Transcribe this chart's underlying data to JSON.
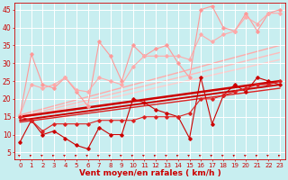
{
  "bg_color": "#c8eef0",
  "grid_color": "#ffffff",
  "xlabel": "Vent moyen/en rafales ( km/h )",
  "xlabel_color": "#cc0000",
  "xlabel_fontsize": 6.5,
  "tick_color": "#cc0000",
  "tick_fontsize": 5.0,
  "x_ticks": [
    0,
    1,
    2,
    3,
    4,
    5,
    6,
    7,
    8,
    9,
    10,
    11,
    12,
    13,
    14,
    15,
    16,
    17,
    18,
    19,
    20,
    21,
    22,
    23
  ],
  "ylim": [
    3,
    47
  ],
  "xlim": [
    -0.5,
    23.5
  ],
  "yticks": [
    5,
    10,
    15,
    20,
    25,
    30,
    35,
    40,
    45
  ],
  "ytick_fontsize": 5.5,
  "line_salmon1": {
    "x": [
      0,
      1,
      2,
      3,
      4,
      5,
      6,
      7,
      8,
      9,
      10,
      11,
      12,
      13,
      14,
      15,
      16,
      17,
      18,
      19,
      20,
      21,
      22,
      23
    ],
    "y": [
      15.5,
      32.5,
      24,
      23,
      26,
      22,
      18,
      36,
      32,
      25,
      35,
      32,
      34,
      35,
      30,
      26,
      45,
      46,
      40,
      39,
      44,
      39,
      44,
      45
    ],
    "color": "#ff9999",
    "lw": 0.8,
    "marker": "D",
    "ms": 1.8
  },
  "line_salmon2": {
    "x": [
      0,
      1,
      2,
      3,
      4,
      5,
      6,
      7,
      8,
      9,
      10,
      11,
      12,
      13,
      14,
      15,
      16,
      17,
      18,
      19,
      20,
      21,
      22,
      23
    ],
    "y": [
      15.5,
      24,
      23,
      24,
      26,
      22.5,
      22,
      26,
      25,
      24,
      29,
      32,
      32,
      32,
      32,
      31,
      38,
      36,
      38,
      39,
      43,
      41,
      44,
      44
    ],
    "color": "#ffaaaa",
    "lw": 0.8,
    "marker": "D",
    "ms": 1.8
  },
  "trend_salmon1": {
    "x": [
      0,
      23
    ],
    "y": [
      15.5,
      35
    ],
    "color": "#ffaaaa",
    "lw": 1.0
  },
  "trend_salmon2": {
    "x": [
      0,
      23
    ],
    "y": [
      15,
      33
    ],
    "color": "#ffbbbb",
    "lw": 1.0
  },
  "trend_salmon3": {
    "x": [
      0,
      23
    ],
    "y": [
      14.5,
      31
    ],
    "color": "#ffcccc",
    "lw": 1.0
  },
  "line_red1": {
    "x": [
      0,
      1,
      2,
      3,
      4,
      5,
      6,
      7,
      8,
      9,
      10,
      11,
      12,
      13,
      14,
      15,
      16,
      17,
      18,
      19,
      20,
      21,
      22,
      23
    ],
    "y": [
      8,
      14,
      10,
      11,
      9,
      7,
      6,
      12,
      10,
      10,
      20,
      19,
      17,
      16,
      15,
      9,
      26,
      13,
      21,
      24,
      22,
      26,
      25,
      24
    ],
    "color": "#cc0000",
    "lw": 0.8,
    "marker": "D",
    "ms": 1.8
  },
  "line_red2": {
    "x": [
      0,
      1,
      2,
      3,
      4,
      5,
      6,
      7,
      8,
      9,
      10,
      11,
      12,
      13,
      14,
      15,
      16,
      17,
      18,
      19,
      20,
      21,
      22,
      23
    ],
    "y": [
      15,
      14,
      11,
      13,
      13,
      13,
      13,
      14,
      14,
      14,
      14,
      15,
      15,
      15,
      15,
      16,
      20,
      20,
      21,
      22,
      23,
      24,
      24,
      25
    ],
    "color": "#dd2222",
    "lw": 0.8,
    "marker": "D",
    "ms": 1.8
  },
  "trend_red1": {
    "x": [
      0,
      23
    ],
    "y": [
      15,
      25
    ],
    "color": "#cc0000",
    "lw": 1.8
  },
  "trend_red2": {
    "x": [
      0,
      23
    ],
    "y": [
      14,
      24
    ],
    "color": "#cc0000",
    "lw": 1.4
  },
  "trend_red3": {
    "x": [
      0,
      23
    ],
    "y": [
      13.5,
      23
    ],
    "color": "#dd2222",
    "lw": 1.0
  },
  "wind_arrows": {
    "x": [
      0,
      1,
      2,
      3,
      4,
      5,
      6,
      7,
      8,
      9,
      10,
      11,
      12,
      13,
      14,
      15,
      16,
      17,
      18,
      19,
      20,
      21,
      22,
      23
    ],
    "y": 3.5,
    "color": "#cc0000",
    "size": 4.5
  }
}
